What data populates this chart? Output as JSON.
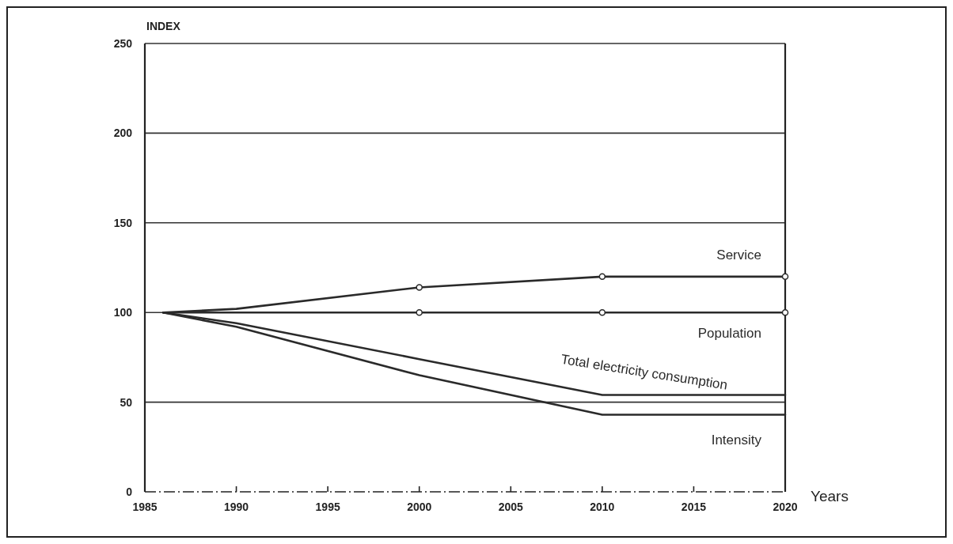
{
  "chart_data": {
    "type": "line",
    "ylabel": "INDEX",
    "xlabel": "Years",
    "xlim": [
      1985,
      2020
    ],
    "xticks": [
      1985,
      1990,
      1995,
      2000,
      2005,
      2010,
      2015,
      2020
    ],
    "ylim": [
      0,
      250
    ],
    "yticks": [
      0,
      50,
      100,
      150,
      200,
      250
    ],
    "grid": "y",
    "line_style": "solid",
    "series": [
      {
        "name": "Service",
        "color": "#2a2a2a",
        "marker": "circle",
        "x": [
          1986,
          1990,
          2000,
          2010,
          2020
        ],
        "values": [
          100,
          102,
          114,
          120,
          120
        ]
      },
      {
        "name": "Population",
        "color": "#2a2a2a",
        "marker": "circle",
        "x": [
          1986,
          1990,
          2000,
          2010,
          2020
        ],
        "values": [
          100,
          100,
          100,
          100,
          100
        ]
      },
      {
        "name": "Total electricity consumption",
        "color": "#2a2a2a",
        "marker": "none",
        "x": [
          1986,
          1990,
          2000,
          2010,
          2020
        ],
        "values": [
          100,
          94,
          74,
          54,
          54
        ]
      },
      {
        "name": "Intensity",
        "color": "#2a2a2a",
        "marker": "none",
        "x": [
          1986,
          1990,
          2000,
          2010,
          2020
        ],
        "values": [
          100,
          92,
          65,
          43,
          43
        ]
      }
    ]
  }
}
